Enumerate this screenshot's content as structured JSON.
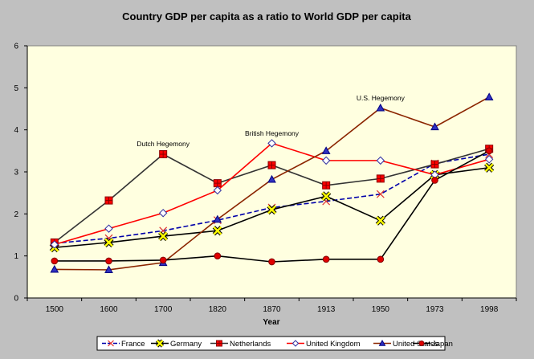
{
  "chart_data": {
    "type": "line",
    "title": "Country GDP per capita as a ratio to World GDP per capita",
    "xlabel": "Year",
    "ylabel": "",
    "categories": [
      "1500",
      "1600",
      "1700",
      "1820",
      "1870",
      "1913",
      "1950",
      "1973",
      "1998"
    ],
    "ylim": [
      0,
      6
    ],
    "yticks": [
      "0",
      "1",
      "2",
      "3",
      "4",
      "5",
      "6"
    ],
    "grid": false,
    "legend_position": "bottom",
    "series": [
      {
        "name": "France",
        "color": "#0000aa",
        "marker": "x-icon",
        "dash": "dashed",
        "values": [
          1.3,
          1.42,
          1.6,
          1.85,
          2.15,
          2.3,
          2.47,
          3.2,
          3.42
        ]
      },
      {
        "name": "Germany",
        "color": "#000000",
        "marker": "yellow-x-icon",
        "dash": "solid",
        "values": [
          1.2,
          1.32,
          1.47,
          1.6,
          2.1,
          2.42,
          1.84,
          2.93,
          3.1
        ]
      },
      {
        "name": "Netherlands",
        "color": "#333333",
        "marker": "red-square-icon",
        "dash": "solid",
        "values": [
          1.32,
          2.32,
          3.42,
          2.73,
          3.16,
          2.68,
          2.84,
          3.18,
          3.55
        ]
      },
      {
        "name": "United Kingdom",
        "color": "#ff0000",
        "marker": "diamond-icon",
        "dash": "solid",
        "values": [
          1.27,
          1.65,
          2.02,
          2.56,
          3.68,
          3.27,
          3.27,
          2.93,
          3.3
        ]
      },
      {
        "name": "United States",
        "color": "#8b2500",
        "marker": "triangle-icon",
        "dash": "solid",
        "values": [
          0.68,
          0.67,
          0.84,
          1.87,
          2.82,
          3.5,
          4.52,
          4.07,
          4.78
        ]
      },
      {
        "name": "Japan",
        "color": "#000000",
        "marker": "red-circle-icon",
        "dash": "solid",
        "values": [
          0.88,
          0.88,
          0.9,
          1.0,
          0.86,
          0.92,
          0.92,
          2.8,
          3.5
        ]
      }
    ],
    "annotations": [
      {
        "text": "Dutch Hegemony",
        "category": "1700",
        "y": 3.67
      },
      {
        "text": "British Hegemony",
        "category": "1870",
        "y": 3.92
      },
      {
        "text": "U.S. Hegemony",
        "category": "1950",
        "y": 4.76
      }
    ]
  }
}
